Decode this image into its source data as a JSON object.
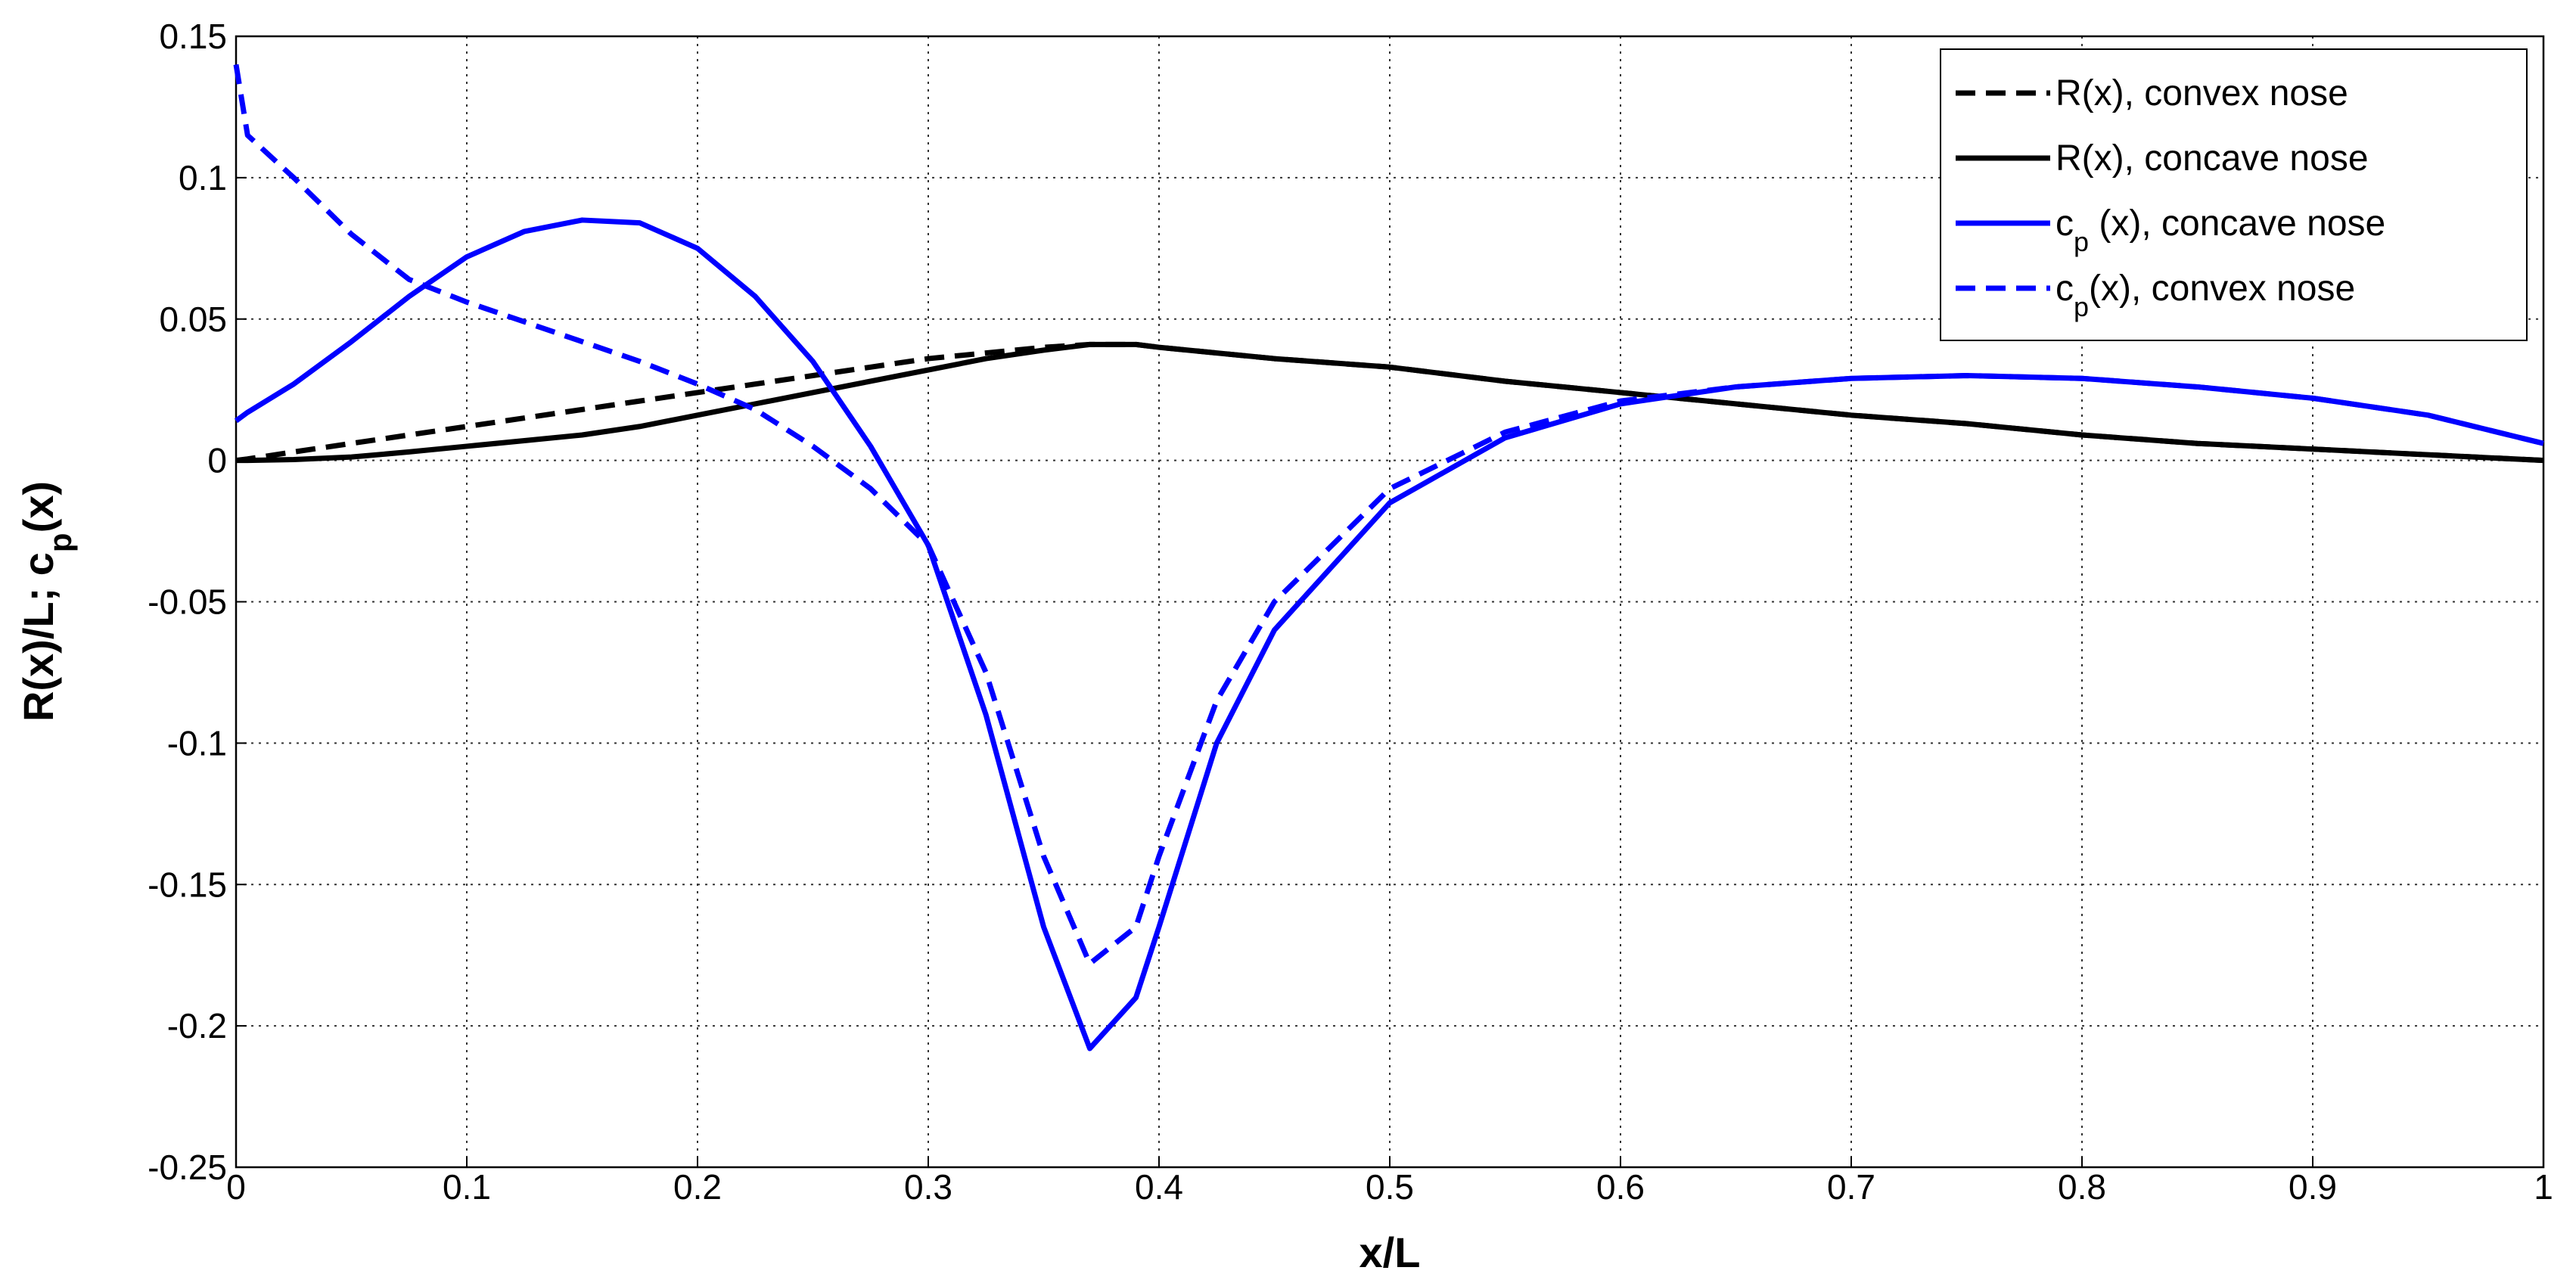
{
  "chart_data": {
    "type": "line",
    "x_label": "x/L",
    "y_label": "R(x)/L; cp(x)",
    "x": [
      0,
      0.005,
      0.025,
      0.05,
      0.075,
      0.1,
      0.125,
      0.15,
      0.175,
      0.2,
      0.225,
      0.25,
      0.275,
      0.3,
      0.325,
      0.35,
      0.37,
      0.39,
      0.4,
      0.425,
      0.45,
      0.5,
      0.55,
      0.6,
      0.65,
      0.7,
      0.75,
      0.8,
      0.85,
      0.9,
      0.95,
      1
    ],
    "series": [
      {
        "name": "R(x), convex nose",
        "color": "#000000",
        "dashed": true,
        "values": [
          0,
          0.0005,
          0.003,
          0.006,
          0.009,
          0.012,
          0.015,
          0.018,
          0.021,
          0.024,
          0.027,
          0.03,
          0.033,
          0.036,
          0.038,
          0.04,
          0.041,
          0.041,
          0.04,
          0.038,
          0.036,
          0.033,
          0.028,
          0.024,
          0.02,
          0.016,
          0.013,
          0.009,
          0.006,
          0.004,
          0.002,
          0
        ]
      },
      {
        "name": "R(x), concave nose",
        "color": "#000000",
        "dashed": false,
        "values": [
          0,
          0,
          0.0003,
          0.0012,
          0.003,
          0.005,
          0.007,
          0.009,
          0.012,
          0.016,
          0.02,
          0.024,
          0.028,
          0.032,
          0.036,
          0.039,
          0.041,
          0.041,
          0.04,
          0.038,
          0.036,
          0.033,
          0.028,
          0.024,
          0.02,
          0.016,
          0.013,
          0.009,
          0.006,
          0.004,
          0.002,
          0
        ]
      },
      {
        "name": "cp (x), concave nose",
        "color": "#0000ff",
        "dashed": false,
        "values": [
          0.014,
          0.017,
          0.027,
          0.042,
          0.058,
          0.072,
          0.081,
          0.085,
          0.084,
          0.075,
          0.058,
          0.035,
          0.005,
          -0.03,
          -0.09,
          -0.165,
          -0.208,
          -0.19,
          -0.165,
          -0.1,
          -0.06,
          -0.015,
          0.008,
          0.02,
          0.026,
          0.029,
          0.03,
          0.029,
          0.026,
          0.022,
          0.016,
          0.006
        ]
      },
      {
        "name": "cp(x), convex nose",
        "color": "#0000ff",
        "dashed": true,
        "values": [
          0.14,
          0.115,
          0.1,
          0.08,
          0.064,
          0.056,
          0.049,
          0.042,
          0.035,
          0.027,
          0.018,
          0.005,
          -0.01,
          -0.03,
          -0.075,
          -0.14,
          -0.178,
          -0.165,
          -0.14,
          -0.085,
          -0.05,
          -0.01,
          0.01,
          0.021,
          0.026,
          0.029,
          0.03,
          0.029,
          0.026,
          0.022,
          0.016,
          0.006
        ]
      }
    ],
    "xlim": [
      0,
      1
    ],
    "xticks": [
      0,
      0.1,
      0.2,
      0.3,
      0.4,
      0.5,
      0.6,
      0.7,
      0.8,
      0.9,
      1
    ],
    "ylim": [
      -0.25,
      0.15
    ],
    "yticks": [
      -0.25,
      -0.2,
      -0.15,
      -0.1,
      -0.05,
      0,
      0.05,
      0.1,
      0.15
    ],
    "grid": true,
    "legend": "upper right"
  }
}
